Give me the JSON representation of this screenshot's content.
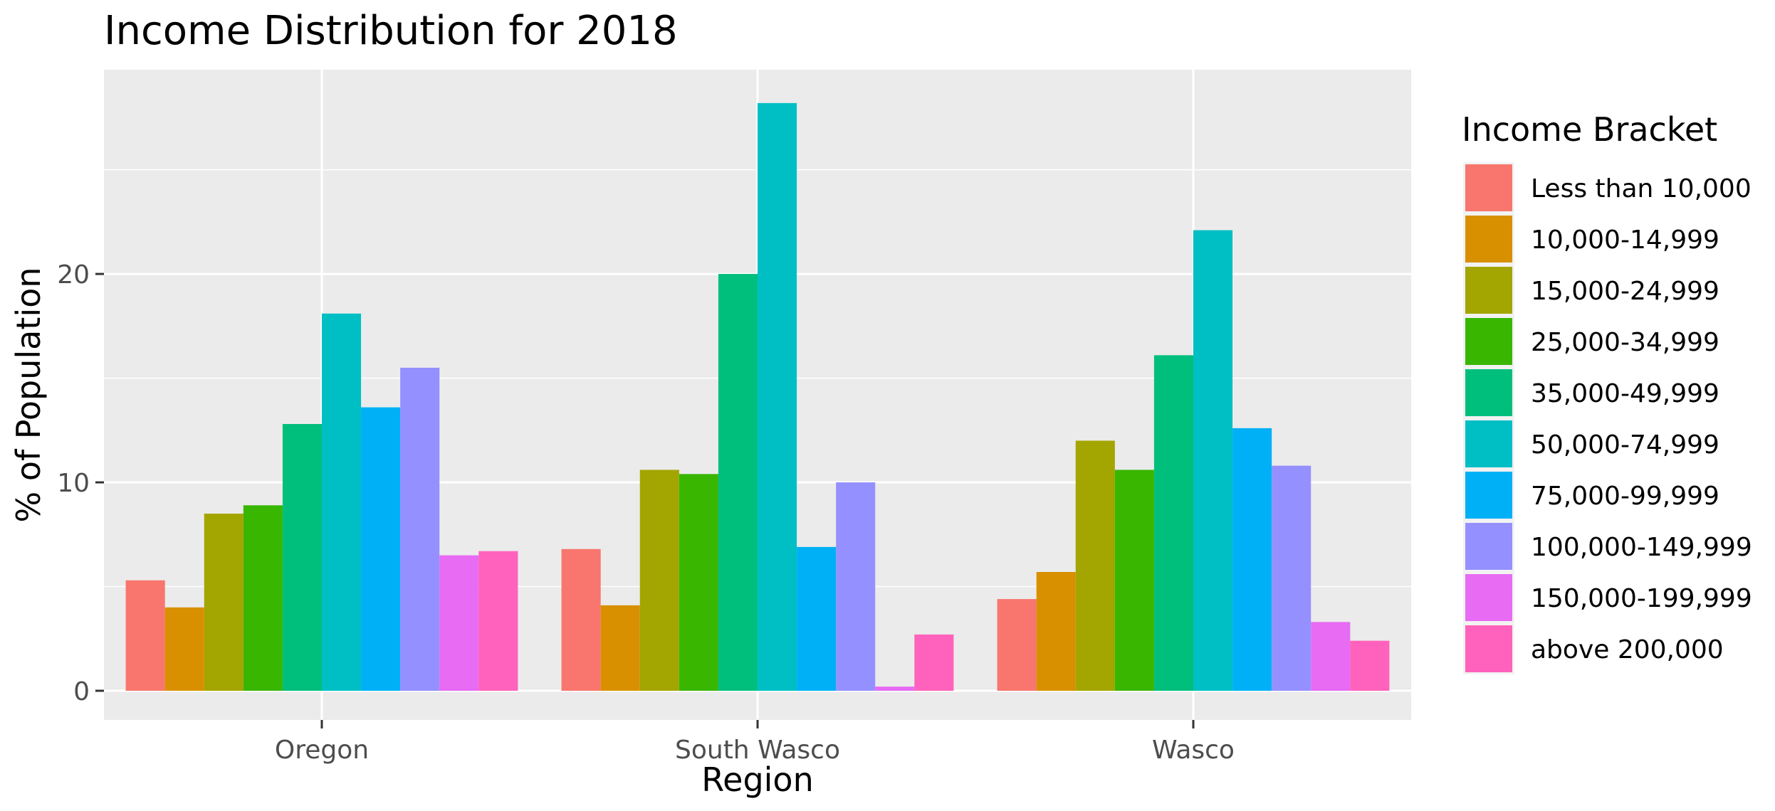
{
  "chart_data": {
    "type": "bar",
    "title": "Income Distribution for 2018",
    "xlabel": "Region",
    "ylabel": "% of Population",
    "categories": [
      "Oregon",
      "South Wasco",
      "Wasco"
    ],
    "ylim": [
      -1.4,
      29.8
    ],
    "yticks": [
      0,
      10,
      20
    ],
    "grid": true,
    "legend_title": "Income Bracket",
    "legend_position": "right",
    "series": [
      {
        "name": "Less than 10,000",
        "color": "#F8766D",
        "values": [
          5.3,
          6.8,
          4.4
        ]
      },
      {
        "name": "10,000-14,999",
        "color": "#D89000",
        "values": [
          4.0,
          4.1,
          5.7
        ]
      },
      {
        "name": "15,000-24,999",
        "color": "#A3A500",
        "values": [
          8.5,
          10.6,
          12.0
        ]
      },
      {
        "name": "25,000-34,999",
        "color": "#39B600",
        "values": [
          8.9,
          10.4,
          10.6
        ]
      },
      {
        "name": "35,000-49,999",
        "color": "#00BF7D",
        "values": [
          12.8,
          20.0,
          16.1
        ]
      },
      {
        "name": "50,000-74,999",
        "color": "#00BFC4",
        "values": [
          18.1,
          28.2,
          22.1
        ]
      },
      {
        "name": "75,000-99,999",
        "color": "#00B0F6",
        "values": [
          13.6,
          6.9,
          12.6
        ]
      },
      {
        "name": "100,000-149,999",
        "color": "#9590FF",
        "values": [
          15.5,
          10.0,
          10.8
        ]
      },
      {
        "name": "150,000-199,999",
        "color": "#E76BF3",
        "values": [
          6.5,
          0.2,
          3.3
        ]
      },
      {
        "name": "above 200,000",
        "color": "#FF62BC",
        "values": [
          6.7,
          2.7,
          2.4
        ]
      }
    ]
  }
}
